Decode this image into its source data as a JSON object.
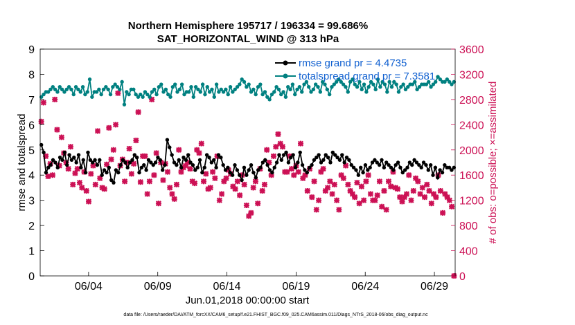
{
  "chart_data": {
    "type": "line",
    "title": "Northern Hemisphere 195717 / 196334 = 99.686%",
    "subtitle": "SAT_HORIZONTAL_WIND @ 313 hPa",
    "xlabel": "Jun.01,2018 00:00:00 start",
    "ylabel_left": "rmse and totalspread",
    "ylabel_right": "# of obs: o=possible; ×=assimilated",
    "footer": "data file: /Users/raeder/DAI/ATM_forcXX/CAM6_setup/f.e21.FHIST_BGC.f09_025.CAM6assim.011/Diags_NTrS_2018-06/obs_diag_output.nc",
    "xlim": [
      0.5,
      30.5
    ],
    "x_ticks": [
      4,
      9,
      14,
      19,
      24,
      29
    ],
    "x_tick_labels": [
      "06/04",
      "06/09",
      "06/14",
      "06/19",
      "06/24",
      "06/29"
    ],
    "ylim_left": [
      0,
      9
    ],
    "y_ticks_left": [
      "0",
      "1",
      "2",
      "3",
      "4",
      "5",
      "6",
      "7",
      "8",
      "9"
    ],
    "ylim_right": [
      0,
      3600
    ],
    "y_ticks_right": [
      "0",
      "400",
      "800",
      "1200",
      "1600",
      "2000",
      "2400",
      "2800",
      "3200",
      "3600"
    ],
    "colors": {
      "rmse": "#000000",
      "spread": "#008080",
      "obs": "#cc1155",
      "right_axis": "#cc1155"
    },
    "series": [
      {
        "name": "rmse grand pr = 4.4735",
        "axis": "left",
        "values": [
          5.2,
          4.9,
          4.1,
          4.3,
          4.4,
          4.6,
          4.5,
          4.3,
          4.7,
          4.6,
          4.9,
          4.4,
          4.8,
          4.6,
          4.7,
          4.5,
          4.8,
          4.3,
          4.6,
          4.1,
          4.9,
          4.6,
          4.5,
          4.6,
          4.4,
          4.6,
          4.0,
          4.2,
          4.1,
          4.3,
          3.8,
          3.7,
          4.2,
          4.1,
          4.4,
          4.6,
          4.5,
          4.3,
          4.5,
          4.6,
          4.8,
          4.7,
          4.1,
          4.3,
          4.4,
          4.2,
          4.6,
          4.5,
          4.4,
          4.5,
          4.7,
          4.6,
          4.2,
          4.4,
          5.4,
          5.1,
          4.8,
          4.5,
          4.4,
          4.6,
          4.3,
          4.7,
          4.6,
          4.8,
          4.5,
          4.4,
          4.2,
          4.3,
          4.6,
          4.1,
          4.3,
          4.8,
          4.7,
          4.5,
          4.6,
          4.3,
          4.8,
          4.7,
          4.4,
          4.2,
          4.3,
          4.1,
          4.0,
          4.4,
          4.2,
          4.0,
          3.8,
          4.3,
          4.0,
          4.2,
          4.4,
          4.1,
          3.9,
          4.2,
          4.3,
          4.5,
          4.6,
          4.4,
          4.2,
          4.1,
          4.3,
          4.5,
          4.8,
          4.6,
          4.8,
          4.9,
          4.5,
          4.7,
          4.8,
          4.3,
          4.5,
          4.9,
          4.4,
          4.2,
          4.1,
          4.3,
          4.4,
          4.6,
          4.7,
          4.8,
          4.5,
          4.6,
          4.8,
          4.7,
          4.5,
          4.9,
          4.8,
          4.7,
          4.6,
          4.8,
          4.5,
          4.7,
          4.6,
          4.4,
          4.3,
          4.2,
          4.0,
          4.3,
          4.1,
          4.4,
          4.2,
          4.3,
          4.5,
          4.6,
          4.5,
          4.4,
          4.6,
          4.3,
          4.5,
          4.4,
          4.3,
          4.2,
          4.4,
          4.5,
          4.3,
          4.1,
          4.2,
          4.3,
          4.5,
          4.4,
          4.6,
          4.5,
          4.4,
          4.3,
          4.5,
          4.4,
          4.2,
          4.4,
          4.0,
          4.3,
          3.9,
          4.2,
          4.1,
          4.4,
          4.3,
          4.3,
          4.2,
          4.3
        ]
      },
      {
        "name": "totalspread grand pr = 7.3581",
        "axis": "left",
        "values": [
          7.1,
          7.2,
          7.3,
          7.3,
          7.4,
          7.5,
          7.4,
          7.3,
          7.5,
          7.4,
          7.3,
          7.4,
          7.5,
          7.4,
          7.2,
          7.5,
          7.4,
          7.3,
          7.5,
          7.2,
          7.3,
          7.8,
          7.1,
          7.3,
          7.3,
          7.4,
          7.2,
          7.4,
          7.5,
          7.4,
          7.2,
          7.5,
          7.6,
          7.5,
          7.4,
          7.7,
          6.8,
          7.3,
          7.2,
          7.4,
          7.4,
          7.2,
          7.1,
          7.2,
          7.1,
          7.3,
          7.2,
          7.1,
          7.3,
          7.4,
          7.2,
          7.5,
          7.6,
          7.3,
          7.4,
          7.2,
          7.1,
          7.5,
          7.6,
          7.3,
          7.4,
          7.6,
          7.2,
          7.3,
          7.3,
          7.5,
          7.1,
          7.5,
          7.4,
          7.3,
          7.6,
          7.2,
          7.5,
          7.3,
          7.4,
          7.1,
          7.6,
          7.3,
          7.4,
          7.3,
          7.4,
          7.2,
          7.5,
          7.3,
          7.4,
          7.5,
          7.6,
          7.8,
          7.7,
          7.5,
          7.6,
          7.3,
          7.4,
          7.2,
          7.5,
          7.6,
          7.2,
          7.3,
          7.1,
          7.0,
          7.2,
          7.3,
          7.5,
          7.4,
          7.2,
          7.3,
          7.1,
          7.5,
          7.4,
          7.6,
          7.2,
          7.4,
          7.5,
          7.3,
          7.6,
          7.7,
          7.5,
          7.3,
          7.4,
          7.6,
          7.5,
          7.3,
          7.7,
          7.6,
          7.4,
          7.2,
          7.5,
          7.6,
          7.7,
          7.8,
          7.7,
          7.6,
          7.5,
          7.3,
          7.7,
          7.8,
          7.6,
          7.5,
          7.7,
          7.4,
          7.6,
          7.3,
          7.5,
          7.7,
          7.6,
          7.4,
          7.8,
          7.5,
          7.7,
          7.6,
          7.3,
          7.7,
          7.5,
          7.7,
          7.6,
          7.3,
          7.5,
          7.6,
          7.4,
          7.5,
          7.6,
          7.6,
          7.7,
          7.4,
          7.5,
          7.6,
          7.6,
          7.6,
          7.7,
          7.5,
          7.6,
          7.7,
          7.9,
          7.8,
          7.7,
          7.7,
          7.8,
          7.7,
          7.6,
          7.7
        ]
      },
      {
        "name": "obs assimilated",
        "axis": "right",
        "values": [
          2450,
          2750,
          1900,
          1580,
          1780,
          1600,
          2800,
          2320,
          1750,
          2200,
          1950,
          1800,
          1700,
          2050,
          1450,
          1630,
          1700,
          1480,
          1400,
          1650,
          1350,
          1180,
          1620,
          1750,
          1450,
          2300,
          1550,
          1400,
          1380,
          1770,
          2350,
          1850,
          2000,
          2400,
          2900,
          1750,
          1850,
          1500,
          1800,
          2020,
          1620,
          1780,
          2150,
          2600,
          1490,
          1900,
          1900,
          1300,
          1500,
          2800,
          1600,
          1950,
          1150,
          1800,
          1520,
          1780,
          1650,
          1400,
          1300,
          1220,
          1450,
          2000,
          1650,
          1720,
          1750,
          1800,
          1700,
          1500,
          1470,
          2000,
          1950,
          2100,
          1500,
          1620,
          1380,
          1400,
          1650,
          1550,
          1900,
          1200,
          1300,
          1500,
          1550,
          1680,
          1620,
          1420,
          1380,
          1500,
          1280,
          1600,
          1450,
          1120,
          950,
          1000,
          1400,
          1500,
          1150,
          1700,
          1350,
          1450,
          2000,
          1800,
          1600,
          1900,
          2050,
          2250,
          2100,
          2050,
          1650,
          1650,
          1900,
          1700,
          1600,
          1750,
          1650,
          2100,
          1550,
          1600,
          1350,
          1700,
          1250,
          1500,
          1050,
          1200,
          1650,
          1700,
          1350,
          1400,
          1500,
          1300,
          1450,
          1200,
          1050,
          1600,
          1550,
          1750,
          1450,
          1350,
          1300,
          1250,
          1480,
          1150,
          1420,
          1200,
          1500,
          1600,
          1300,
          1200,
          1200,
          1280,
          1500,
          1100,
          1350,
          1050,
          1500,
          1420,
          1650,
          1400,
          1380,
          1250,
          1180,
          1250,
          1300,
          1600,
          1200,
          1350,
          1550,
          1500,
          1300,
          1400,
          1250,
          1450,
          1350,
          1150,
          1300,
          1250,
          1600,
          1350,
          1000,
          1300,
          1250,
          1200,
          1100,
          0
        ]
      }
    ]
  }
}
